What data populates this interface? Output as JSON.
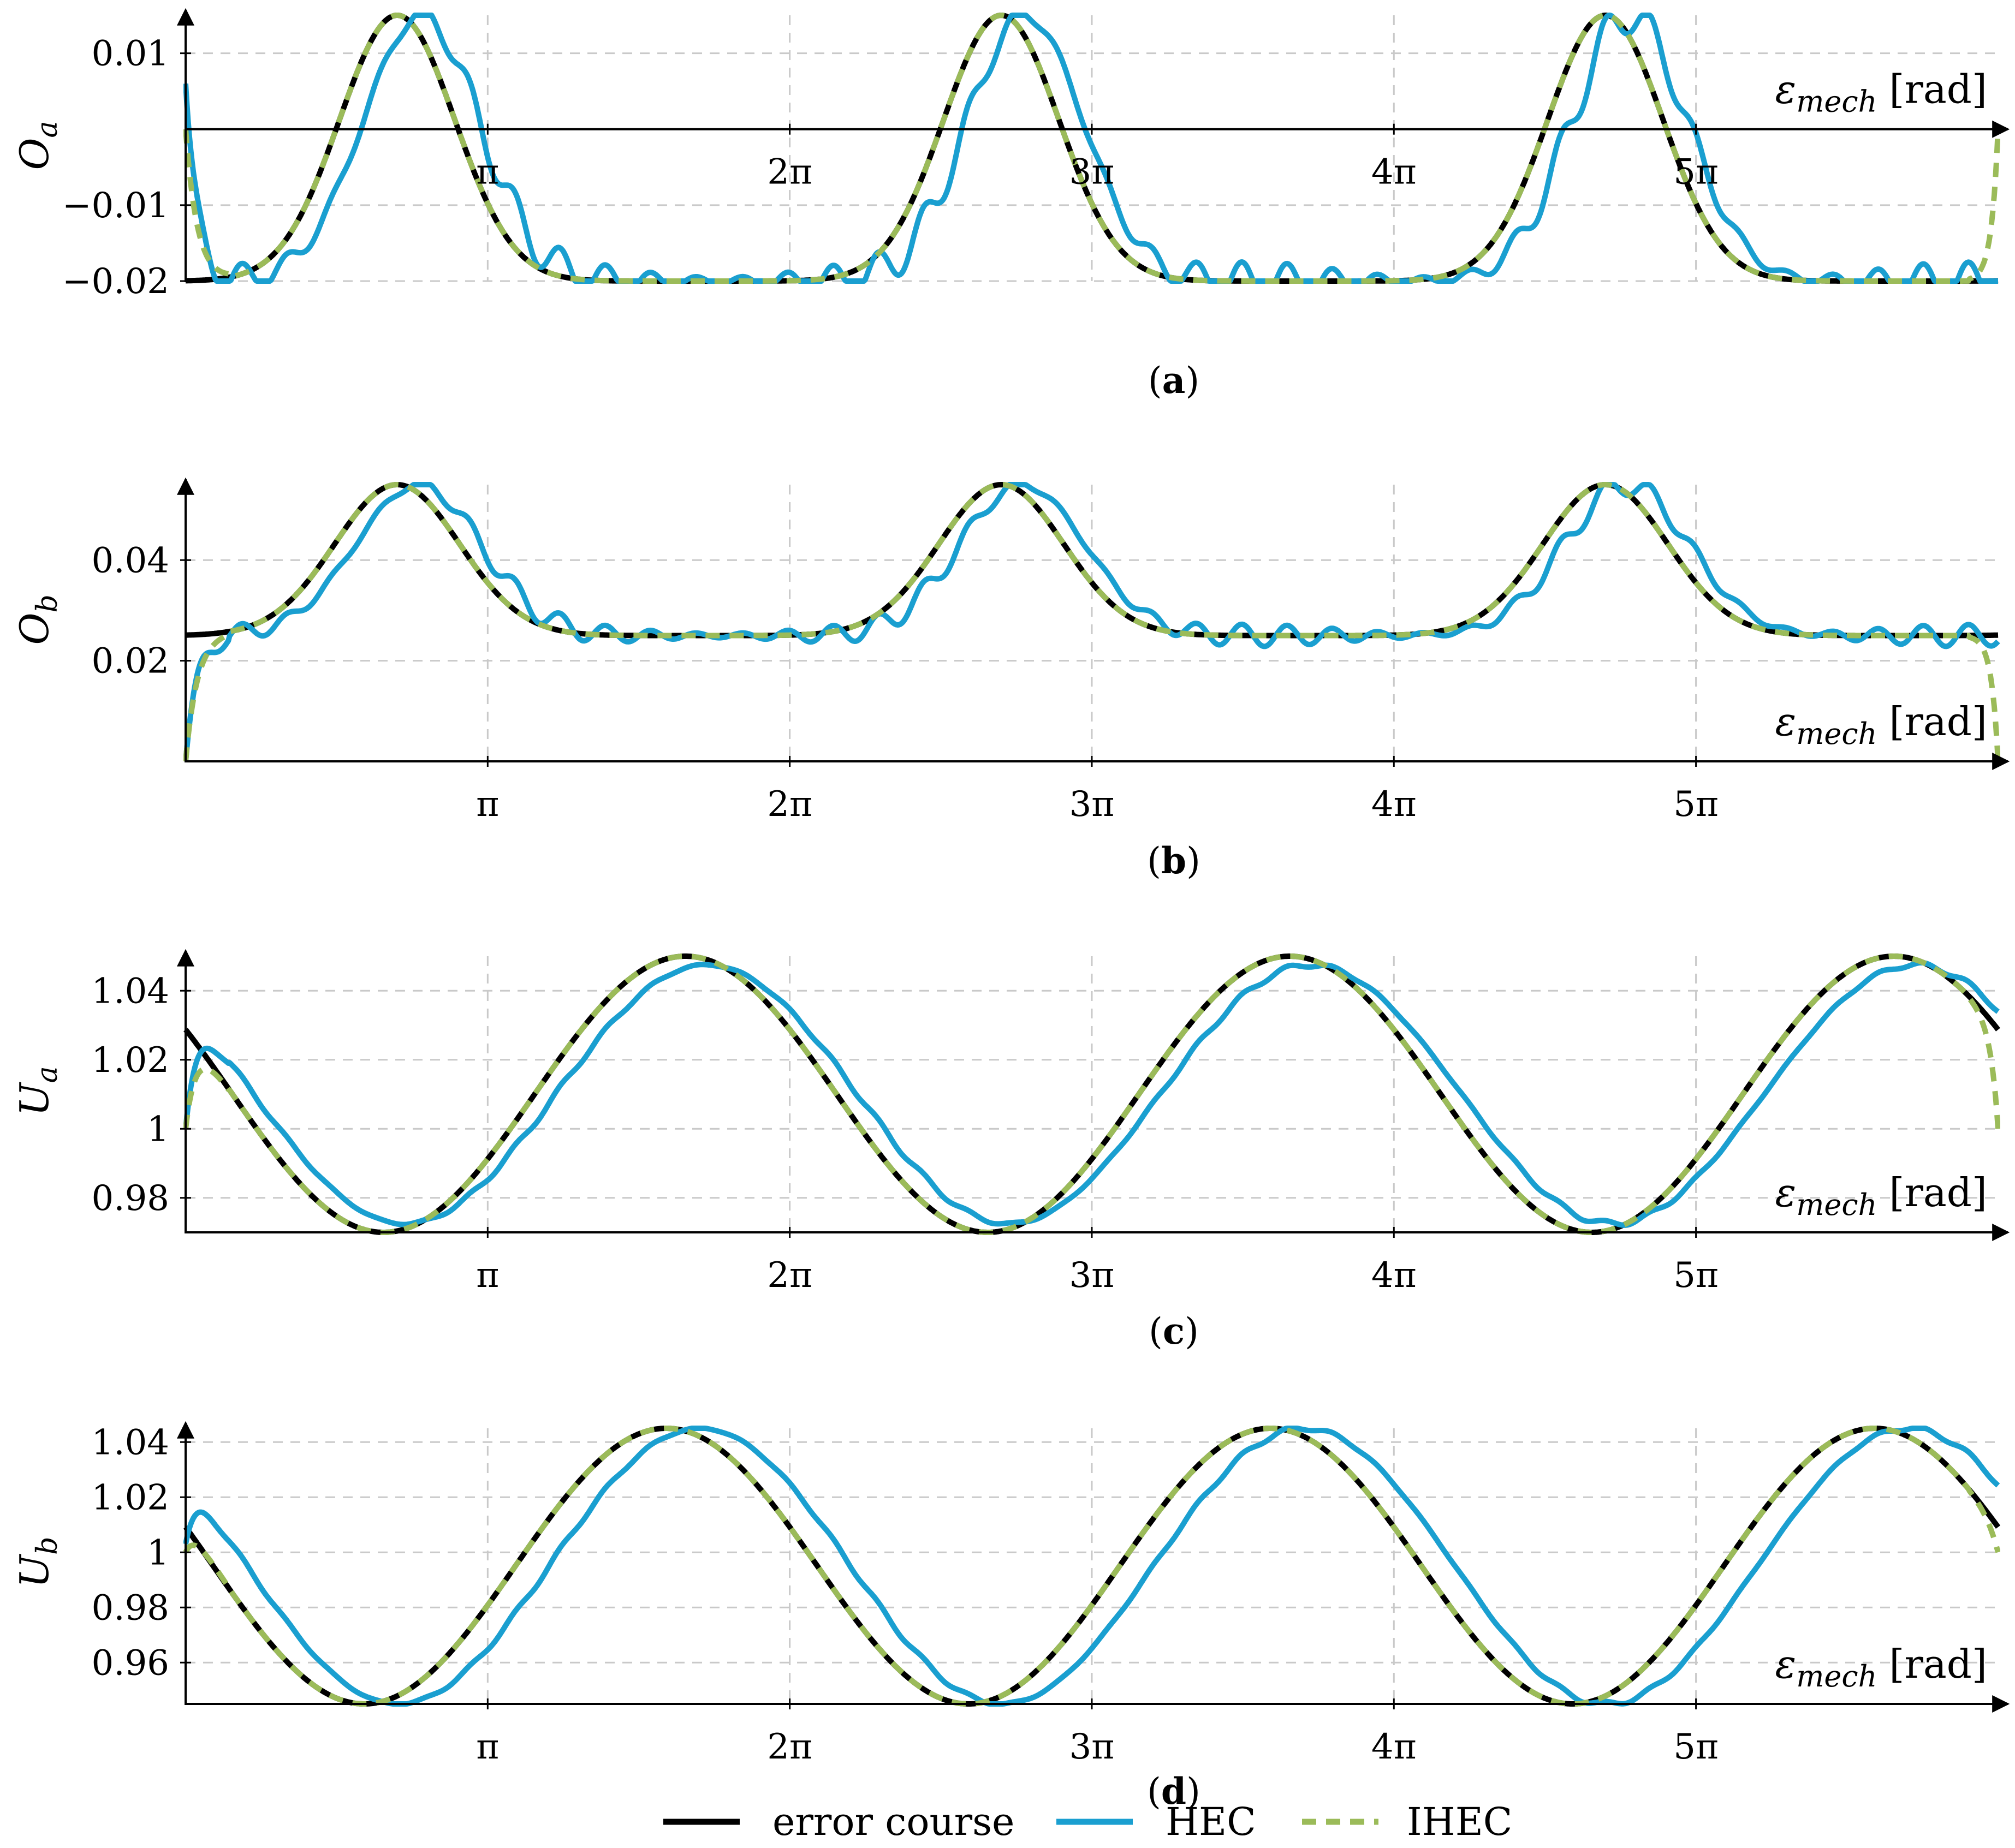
{
  "figure": {
    "legend": {
      "entries": [
        {
          "label": "error course",
          "color": "#000000",
          "style": "solid"
        },
        {
          "label": "HEC",
          "color": "#1a9fd0",
          "style": "solid"
        },
        {
          "label": "IHEC",
          "color": "#9bbb59",
          "style": "dashed"
        }
      ]
    }
  },
  "chart_data": [
    {
      "type": "line",
      "panel": "a",
      "caption": "a",
      "ylabel": "O",
      "ylabel_sub": "a",
      "xlabel": "ε",
      "xlabel_sub": "mech",
      "xlabel_unit": "[rad]",
      "xlim": [
        0,
        18.85
      ],
      "ylim": [
        -0.02,
        0.015
      ],
      "x_ticks": [
        3.1416,
        6.2832,
        9.4248,
        12.5664,
        15.708
      ],
      "x_tick_labels": [
        "π",
        "2π",
        "3π",
        "4π",
        "5π"
      ],
      "y_ticks": [
        0.01,
        -0.01,
        -0.02
      ],
      "y_tick_labels": [
        "0.01",
        "−0.01",
        "−0.02"
      ],
      "grid": true,
      "x_axis_at": 0,
      "series": [
        {
          "name": "error course",
          "model": "peak",
          "baseline": -0.02,
          "peak": 0.015,
          "period": 6.2832,
          "center": 2.2,
          "width": 0.6
        },
        {
          "name": "HEC",
          "model": "peak",
          "baseline": -0.02,
          "peak": 0.015,
          "period": 6.2832,
          "center": 2.2,
          "width": 0.6,
          "lag": 0.25,
          "ripple": 0.0025,
          "start": 0.006
        },
        {
          "name": "IHEC",
          "model": "peak",
          "baseline": -0.02,
          "peak": 0.015,
          "period": 6.2832,
          "center": 2.2,
          "width": 0.6,
          "start": 0,
          "end": 0
        }
      ]
    },
    {
      "type": "line",
      "panel": "b",
      "caption": "b",
      "ylabel": "O",
      "ylabel_sub": "b",
      "xlabel": "ε",
      "xlabel_sub": "mech",
      "xlabel_unit": "[rad]",
      "xlim": [
        0,
        18.85
      ],
      "ylim": [
        0,
        0.055
      ],
      "x_ticks": [
        3.1416,
        6.2832,
        9.4248,
        12.5664,
        15.708
      ],
      "x_tick_labels": [
        "π",
        "2π",
        "3π",
        "4π",
        "5π"
      ],
      "y_ticks": [
        0.04,
        0.02
      ],
      "y_tick_labels": [
        "0.04",
        "0.02"
      ],
      "grid": true,
      "x_axis_at": 0,
      "series": [
        {
          "name": "error course",
          "model": "peak",
          "baseline": 0.025,
          "peak": 0.055,
          "period": 6.2832,
          "center": 2.2,
          "width": 0.65
        },
        {
          "name": "HEC",
          "model": "peak",
          "baseline": 0.025,
          "peak": 0.055,
          "period": 6.2832,
          "center": 2.2,
          "width": 0.65,
          "lag": 0.22,
          "ripple": 0.0022,
          "start": 0
        },
        {
          "name": "IHEC",
          "model": "peak",
          "baseline": 0.025,
          "peak": 0.055,
          "period": 6.2832,
          "center": 2.2,
          "width": 0.65,
          "start": 0,
          "end": 0
        }
      ]
    },
    {
      "type": "line",
      "panel": "c",
      "caption": "c",
      "ylabel": "U",
      "ylabel_sub": "a",
      "xlabel": "ε",
      "xlabel_sub": "mech",
      "xlabel_unit": "[rad]",
      "xlim": [
        0,
        18.85
      ],
      "ylim": [
        0.97,
        1.05
      ],
      "x_ticks": [
        3.1416,
        6.2832,
        9.4248,
        12.5664,
        15.708
      ],
      "x_tick_labels": [
        "π",
        "2π",
        "3π",
        "4π",
        "5π"
      ],
      "y_ticks": [
        1.04,
        1.02,
        1.0,
        0.98
      ],
      "y_tick_labels": [
        "1.04",
        "1.02",
        "1",
        "0.98"
      ],
      "grid": true,
      "x_axis_at": 0.97,
      "series": [
        {
          "name": "error course",
          "model": "cosine",
          "mean": 1.01,
          "amp": 0.04,
          "period": 6.2832,
          "peak_at": 5.2
        },
        {
          "name": "HEC",
          "model": "cosine",
          "mean": 1.01,
          "amp": 0.0375,
          "period": 6.2832,
          "peak_at": 5.2,
          "lag": 0.22,
          "ripple": 0.0008,
          "start": 1.0
        },
        {
          "name": "IHEC",
          "model": "cosine",
          "mean": 1.01,
          "amp": 0.04,
          "period": 6.2832,
          "peak_at": 5.2,
          "start": 1.0,
          "end": 1.0
        }
      ]
    },
    {
      "type": "line",
      "panel": "d",
      "caption": "d",
      "ylabel": "U",
      "ylabel_sub": "b",
      "xlabel": "ε",
      "xlabel_sub": "mech",
      "xlabel_unit": "[rad]",
      "xlim": [
        0,
        18.85
      ],
      "ylim": [
        0.945,
        1.045
      ],
      "x_ticks": [
        3.1416,
        6.2832,
        9.4248,
        12.5664,
        15.708
      ],
      "x_tick_labels": [
        "π",
        "2π",
        "3π",
        "4π",
        "5π"
      ],
      "y_ticks": [
        1.04,
        1.02,
        1.0,
        0.98,
        0.96
      ],
      "y_tick_labels": [
        "1.04",
        "1.02",
        "1",
        "0.98",
        "0.96"
      ],
      "grid": true,
      "x_axis_at": 0.945,
      "series": [
        {
          "name": "error course",
          "model": "cosine",
          "mean": 0.995,
          "amp": 0.05,
          "period": 6.2832,
          "peak_at": 5.0
        },
        {
          "name": "HEC",
          "model": "cosine",
          "mean": 0.995,
          "amp": 0.05,
          "period": 6.2832,
          "peak_at": 5.0,
          "lag": 0.35,
          "ripple": 0.0009,
          "start": 1.003
        },
        {
          "name": "IHEC",
          "model": "cosine",
          "mean": 0.995,
          "amp": 0.05,
          "period": 6.2832,
          "peak_at": 5.0,
          "start": 1.0,
          "end": 1.0
        }
      ]
    }
  ]
}
